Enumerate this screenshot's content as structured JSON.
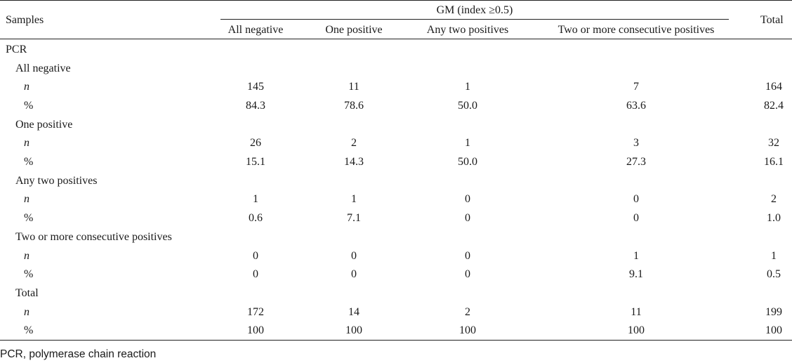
{
  "header": {
    "samples": "Samples",
    "group": "GM (index ≥0.5)",
    "total": "Total",
    "columns": [
      "All negative",
      "One positive",
      "Any two positives",
      "Two or more consecutive positives"
    ]
  },
  "section": "PCR",
  "groups": [
    {
      "label": "All negative",
      "rows": [
        {
          "label": "n",
          "values": [
            "145",
            "11",
            "1",
            "7",
            "164"
          ]
        },
        {
          "label": "%",
          "values": [
            "84.3",
            "78.6",
            "50.0",
            "63.6",
            "82.4"
          ]
        }
      ]
    },
    {
      "label": "One positive",
      "rows": [
        {
          "label": "n",
          "values": [
            "26",
            "2",
            "1",
            "3",
            "32"
          ]
        },
        {
          "label": "%",
          "values": [
            "15.1",
            "14.3",
            "50.0",
            "27.3",
            "16.1"
          ]
        }
      ]
    },
    {
      "label": "Any two positives",
      "rows": [
        {
          "label": "n",
          "values": [
            "1",
            "1",
            "0",
            "0",
            "2"
          ]
        },
        {
          "label": "%",
          "values": [
            "0.6",
            "7.1",
            "0",
            "0",
            "1.0"
          ]
        }
      ]
    },
    {
      "label": "Two or more consecutive positives",
      "rows": [
        {
          "label": "n",
          "values": [
            "0",
            "0",
            "0",
            "1",
            "1"
          ]
        },
        {
          "label": "%",
          "values": [
            "0",
            "0",
            "0",
            "9.1",
            "0.5"
          ]
        }
      ]
    },
    {
      "label": "Total",
      "rows": [
        {
          "label": "n",
          "values": [
            "172",
            "14",
            "2",
            "11",
            "199"
          ]
        },
        {
          "label": "%",
          "values": [
            "100",
            "100",
            "100",
            "100",
            "100"
          ]
        }
      ]
    }
  ],
  "footnote": "PCR, polymerase chain reaction"
}
